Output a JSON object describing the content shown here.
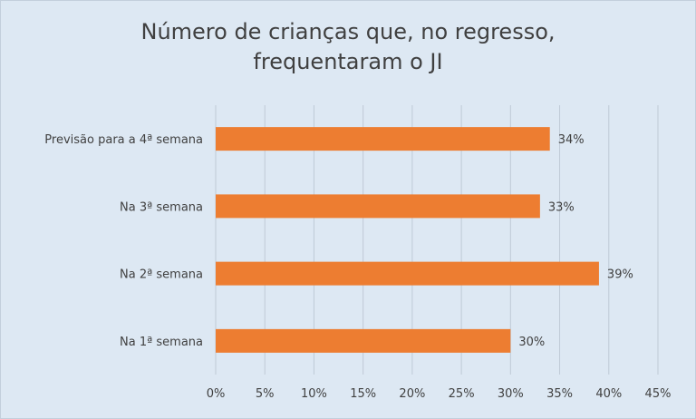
{
  "chart_data": {
    "type": "bar",
    "orientation": "horizontal",
    "title": [
      "Número de crianças que, no regresso,",
      "frequentaram o JI"
    ],
    "categories": [
      "Previsão para a 4ª semana",
      "Na 3ª semana",
      "Na 2ª semana",
      "Na 1ª semana"
    ],
    "values": [
      34,
      33,
      39,
      30
    ],
    "data_labels": [
      "34%",
      "33%",
      "39%",
      "30%"
    ],
    "xlim": [
      0,
      45
    ],
    "xticks": [
      "0%",
      "5%",
      "10%",
      "15%",
      "20%",
      "25%",
      "30%",
      "35%",
      "40%",
      "45%"
    ],
    "grid": "vertical",
    "legend": "none",
    "colors": {
      "bar": "#ed7d31",
      "grid": "#bfcad6",
      "background": "#dde8f3"
    }
  }
}
